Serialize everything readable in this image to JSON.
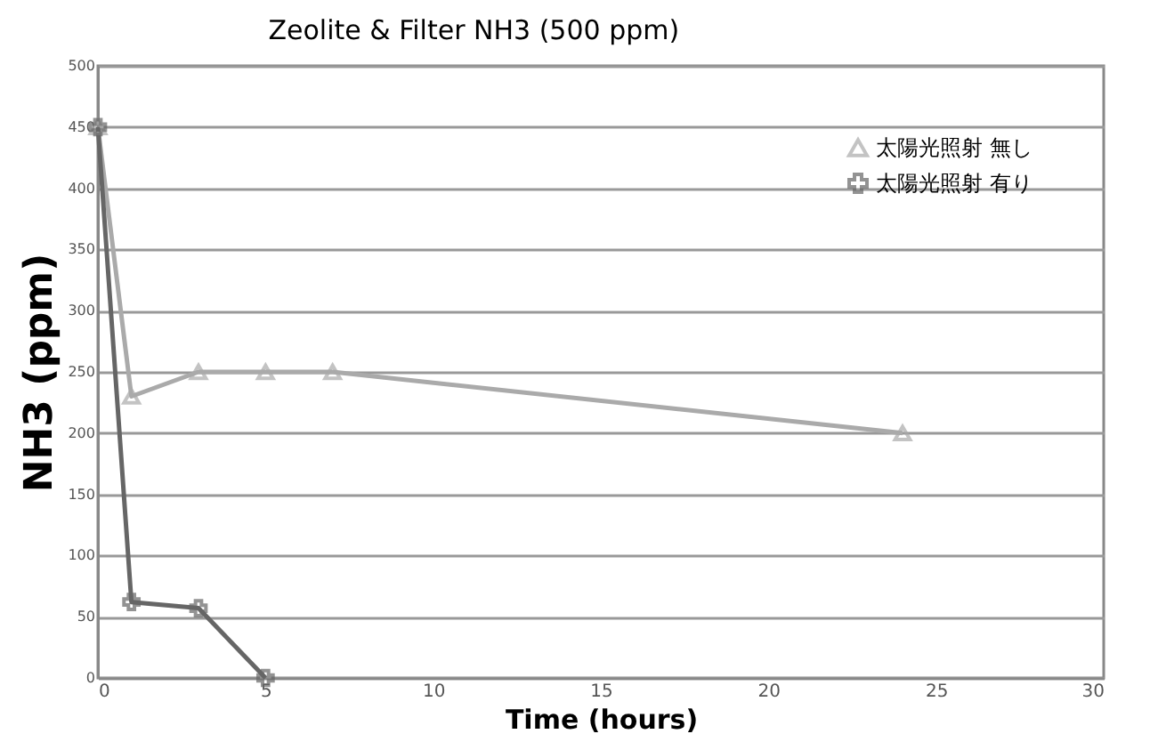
{
  "chart_data": {
    "type": "line",
    "title": "Zeolite & Filter       NH3 (500 ppm)",
    "xlabel": "Time (hours)",
    "ylabel": "NH3 (ppm)",
    "xlim": [
      0,
      30
    ],
    "xticks": [
      0,
      5,
      10,
      15,
      20,
      25,
      30
    ],
    "ylim": [
      0,
      500
    ],
    "yticks": [
      0,
      50,
      100,
      150,
      200,
      250,
      300,
      350,
      400,
      450,
      500
    ],
    "grid": "y",
    "legend": "top right",
    "series": [
      {
        "name": "太陽光照射 無し",
        "color": "#aaaaaa",
        "marker": "triangle",
        "x": [
          0,
          1,
          3,
          5,
          7,
          24
        ],
        "values": [
          450,
          230,
          250,
          250,
          250,
          200
        ]
      },
      {
        "name": "太陽光照射 有り",
        "color": "#666666",
        "marker": "cross",
        "x": [
          0,
          1,
          3,
          5
        ],
        "values": [
          450,
          62,
          57,
          0
        ]
      }
    ]
  }
}
